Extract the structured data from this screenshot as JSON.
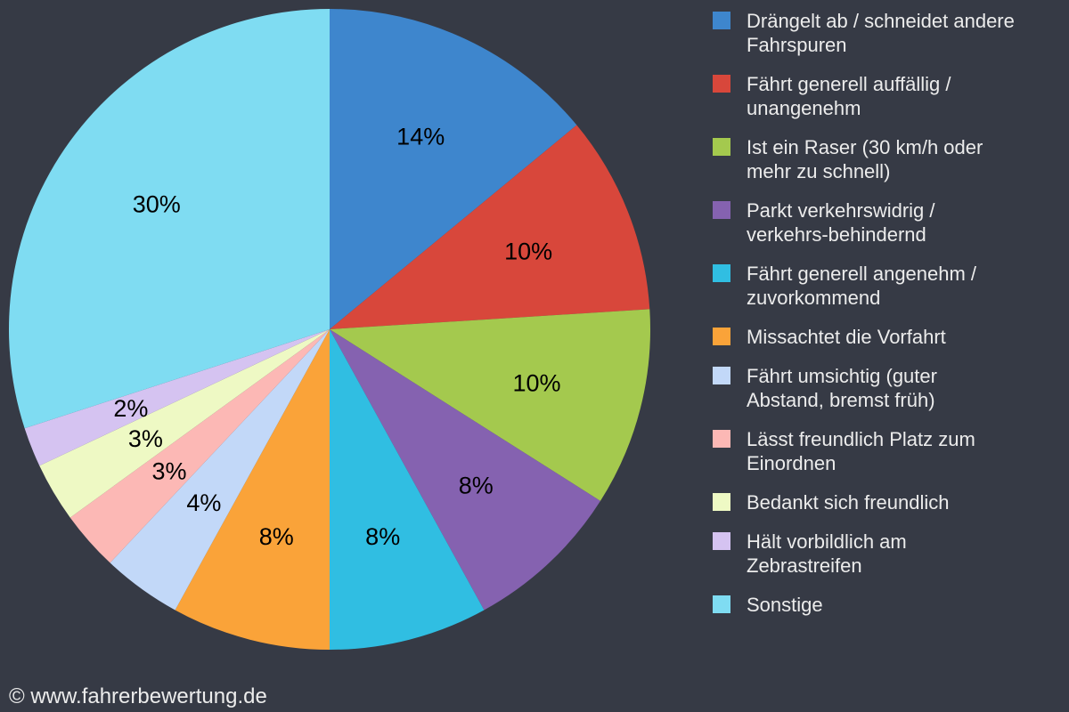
{
  "page": {
    "background_color": "#363a45",
    "copyright": "© www.fahrerbewertung.de",
    "text_color": "#ececec"
  },
  "chart_data": {
    "type": "pie",
    "legend_position": "right",
    "start_angle_deg": 0,
    "direction": "clockwise",
    "slice_label_color": "#000000",
    "categories": [
      "Drängelt ab / schneidet andere Fahrspuren",
      "Fährt generell auffällig / unangenehm",
      "Ist ein Raser (30 km/h oder mehr zu schnell)",
      "Parkt verkehrswidrig / verkehrs-behindernd",
      "Fährt generell angenehm / zuvorkommend",
      "Missachtet die Vorfahrt",
      "Fährt umsichtig (guter Abstand, bremst früh)",
      "Lässt freundlich Platz zum Einordnen",
      "Bedankt sich freundlich",
      "Hält vorbildlich am Zebrastreifen",
      "Sonstige"
    ],
    "values": [
      14,
      10,
      10,
      8,
      8,
      8,
      4,
      3,
      3,
      2,
      30
    ],
    "value_labels": [
      "14%",
      "10%",
      "10%",
      "8%",
      "8%",
      "8%",
      "4%",
      "3%",
      "3%",
      "2%",
      "30%"
    ],
    "colors": [
      "#3e86cd",
      "#d8473b",
      "#a4c94e",
      "#8562b0",
      "#30bee2",
      "#faa339",
      "#c2d8f8",
      "#fcb8b5",
      "#eef9c4",
      "#d5c3f1",
      "#7fdcf2"
    ]
  }
}
